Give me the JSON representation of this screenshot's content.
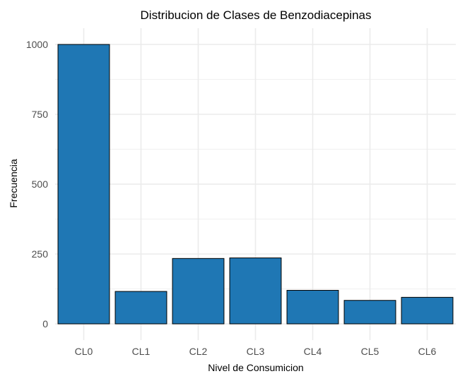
{
  "chart_data": {
    "type": "bar",
    "title": "Distribucion de Clases de Benzodiacepinas",
    "xlabel": "Nivel de Consumicion",
    "ylabel": "Frecuencia",
    "categories": [
      "CL0",
      "CL1",
      "CL2",
      "CL3",
      "CL4",
      "CL5",
      "CL6"
    ],
    "values": [
      1000,
      116,
      234,
      236,
      120,
      84,
      95
    ],
    "ylim": [
      0,
      1000
    ],
    "yticks": [
      0,
      250,
      500,
      750,
      1000
    ],
    "ytick_labels": [
      "0",
      "250",
      "500",
      "750",
      "1000"
    ],
    "grid": true,
    "legend": "none",
    "colors": {
      "bar_fill": "#1f77b4",
      "bar_stroke": "#000000",
      "grid": "#ebebeb",
      "tick_text": "#4d4d4d"
    }
  }
}
